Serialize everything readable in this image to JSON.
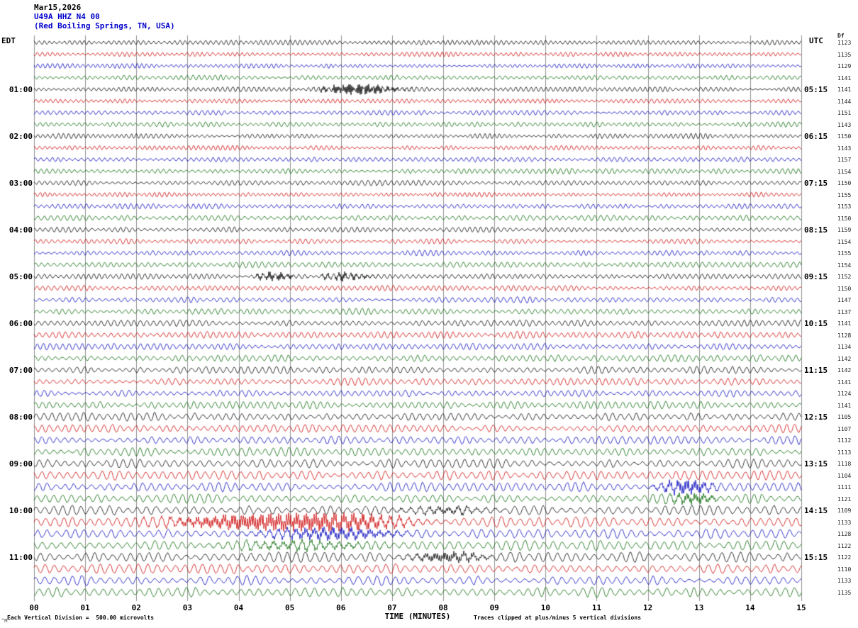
{
  "header": {
    "date": "Mar15,2026",
    "station": "U49A HHZ N4 00",
    "location": "(Red Boiling Springs, TN, USA)"
  },
  "footer": {
    "scale_note": "Each Vertical Division =  500.00 microvolts",
    "clip_note": "Traces clipped at plus/minus 5 vertical divisions",
    "corner_mark": "^M"
  },
  "colors": {
    "black": "#000000",
    "red": "#cc0000",
    "blue": "#0000bb",
    "green": "#006600",
    "grid": "#909090"
  },
  "chart_data": {
    "type": "line",
    "subtype": "helicorder-seismogram",
    "title": "U49A HHZ N4 00 (Red Boiling Springs, TN, USA) Mar15,2026",
    "left_timezone": "EDT",
    "right_timezone": "UTC",
    "right_col_header": "Df",
    "xlabel": "TIME (MINUTES)",
    "x_range": [
      0,
      15
    ],
    "minutes_per_row": 15,
    "x_ticks": [
      "00",
      "01",
      "02",
      "03",
      "04",
      "05",
      "06",
      "07",
      "08",
      "09",
      "10",
      "11",
      "12",
      "13",
      "14",
      "15"
    ],
    "rows": [
      {
        "color": "black",
        "left": null,
        "right": null,
        "value": "1123",
        "amp": 2.3,
        "wl": 7,
        "seed": 101
      },
      {
        "color": "red",
        "left": null,
        "right": null,
        "value": "1135",
        "amp": 2.0,
        "wl": 7,
        "seed": 114
      },
      {
        "color": "blue",
        "left": null,
        "right": null,
        "value": "1129",
        "amp": 2.1,
        "wl": 7,
        "seed": 127
      },
      {
        "color": "green",
        "left": null,
        "right": null,
        "value": "1141",
        "amp": 2.2,
        "wl": 8,
        "seed": 140
      },
      {
        "color": "black",
        "left": "01:00",
        "right": "05:15",
        "value": "1141",
        "amp": 2.0,
        "wl": 7,
        "seed": 153,
        "events": [
          {
            "m": 6.15,
            "a": 6,
            "w": 0.35
          },
          {
            "m": 6.8,
            "a": 2.5,
            "w": 0.5
          }
        ]
      },
      {
        "color": "red",
        "left": null,
        "right": null,
        "value": "1144",
        "amp": 2.0,
        "wl": 7,
        "seed": 166
      },
      {
        "color": "blue",
        "left": null,
        "right": null,
        "value": "1151",
        "amp": 2.1,
        "wl": 8,
        "seed": 179
      },
      {
        "color": "green",
        "left": null,
        "right": null,
        "value": "1143",
        "amp": 2.2,
        "wl": 8,
        "seed": 192
      },
      {
        "color": "black",
        "left": "02:00",
        "right": "06:15",
        "value": "1150",
        "amp": 2.2,
        "wl": 7,
        "seed": 205
      },
      {
        "color": "red",
        "left": null,
        "right": null,
        "value": "1143",
        "amp": 2.1,
        "wl": 7,
        "seed": 218
      },
      {
        "color": "blue",
        "left": null,
        "right": null,
        "value": "1157",
        "amp": 2.2,
        "wl": 8,
        "seed": 231
      },
      {
        "color": "green",
        "left": null,
        "right": null,
        "value": "1154",
        "amp": 2.3,
        "wl": 8,
        "seed": 244
      },
      {
        "color": "black",
        "left": "03:00",
        "right": "07:15",
        "value": "1150",
        "amp": 2.2,
        "wl": 8,
        "seed": 257
      },
      {
        "color": "red",
        "left": null,
        "right": null,
        "value": "1155",
        "amp": 2.1,
        "wl": 7,
        "seed": 270
      },
      {
        "color": "blue",
        "left": null,
        "right": null,
        "value": "1153",
        "amp": 2.3,
        "wl": 8,
        "seed": 283
      },
      {
        "color": "green",
        "left": null,
        "right": null,
        "value": "1150",
        "amp": 2.4,
        "wl": 9,
        "seed": 296
      },
      {
        "color": "black",
        "left": "04:00",
        "right": "08:15",
        "value": "1159",
        "amp": 2.3,
        "wl": 8,
        "seed": 309
      },
      {
        "color": "red",
        "left": null,
        "right": null,
        "value": "1154",
        "amp": 2.2,
        "wl": 8,
        "seed": 322
      },
      {
        "color": "blue",
        "left": null,
        "right": null,
        "value": "1155",
        "amp": 2.3,
        "wl": 8,
        "seed": 335
      },
      {
        "color": "green",
        "left": null,
        "right": null,
        "value": "1154",
        "amp": 2.4,
        "wl": 9,
        "seed": 348
      },
      {
        "color": "black",
        "left": "05:00",
        "right": "09:15",
        "value": "1152",
        "amp": 2.3,
        "wl": 8,
        "seed": 361,
        "events": [
          {
            "m": 4.7,
            "a": 4.5,
            "w": 0.25
          },
          {
            "m": 6.05,
            "a": 4,
            "w": 0.35
          }
        ]
      },
      {
        "color": "red",
        "left": null,
        "right": null,
        "value": "1150",
        "amp": 2.3,
        "wl": 8,
        "seed": 374
      },
      {
        "color": "blue",
        "left": null,
        "right": null,
        "value": "1147",
        "amp": 2.4,
        "wl": 9,
        "seed": 387
      },
      {
        "color": "green",
        "left": null,
        "right": null,
        "value": "1137",
        "amp": 2.5,
        "wl": 9,
        "seed": 400
      },
      {
        "color": "black",
        "left": "06:00",
        "right": "10:15",
        "value": "1141",
        "amp": 2.8,
        "wl": 9,
        "seed": 413
      },
      {
        "color": "red",
        "left": null,
        "right": null,
        "value": "1128",
        "amp": 3.0,
        "wl": 9,
        "seed": 426
      },
      {
        "color": "blue",
        "left": null,
        "right": null,
        "value": "1134",
        "amp": 2.9,
        "wl": 9,
        "seed": 439
      },
      {
        "color": "green",
        "left": null,
        "right": null,
        "value": "1142",
        "amp": 3.0,
        "wl": 10,
        "seed": 452
      },
      {
        "color": "black",
        "left": "07:00",
        "right": "11:15",
        "value": "1142",
        "amp": 3.2,
        "wl": 10,
        "seed": 465
      },
      {
        "color": "red",
        "left": null,
        "right": null,
        "value": "1141",
        "amp": 3.1,
        "wl": 10,
        "seed": 478
      },
      {
        "color": "blue",
        "left": null,
        "right": null,
        "value": "1124",
        "amp": 3.0,
        "wl": 10,
        "seed": 491
      },
      {
        "color": "green",
        "left": null,
        "right": null,
        "value": "1141",
        "amp": 3.2,
        "wl": 10,
        "seed": 504
      },
      {
        "color": "black",
        "left": "08:00",
        "right": "12:15",
        "value": "1105",
        "amp": 3.6,
        "wl": 11,
        "seed": 517
      },
      {
        "color": "red",
        "left": null,
        "right": null,
        "value": "1107",
        "amp": 3.5,
        "wl": 11,
        "seed": 530
      },
      {
        "color": "blue",
        "left": null,
        "right": null,
        "value": "1112",
        "amp": 3.6,
        "wl": 11,
        "seed": 543
      },
      {
        "color": "green",
        "left": null,
        "right": null,
        "value": "1113",
        "amp": 3.7,
        "wl": 11,
        "seed": 556
      },
      {
        "color": "black",
        "left": "09:00",
        "right": "13:15",
        "value": "1118",
        "amp": 3.9,
        "wl": 12,
        "seed": 569
      },
      {
        "color": "red",
        "left": null,
        "right": null,
        "value": "1104",
        "amp": 4.0,
        "wl": 12,
        "seed": 582
      },
      {
        "color": "blue",
        "left": null,
        "right": null,
        "value": "1111",
        "amp": 4.0,
        "wl": 12,
        "seed": 595,
        "events": [
          {
            "m": 12.75,
            "a": 7,
            "w": 0.35
          }
        ]
      },
      {
        "color": "green",
        "left": null,
        "right": null,
        "value": "1121",
        "amp": 4.1,
        "wl": 12,
        "seed": 608,
        "events": [
          {
            "m": 12.9,
            "a": 5,
            "w": 0.3
          }
        ]
      },
      {
        "color": "black",
        "left": "10:00",
        "right": "14:15",
        "value": "1109",
        "amp": 4.3,
        "wl": 13,
        "seed": 621,
        "events": [
          {
            "m": 8.0,
            "a": 3,
            "w": 0.6
          }
        ]
      },
      {
        "color": "red",
        "left": null,
        "right": null,
        "value": "1133",
        "amp": 4.4,
        "wl": 13,
        "seed": 634,
        "events": [
          {
            "m": 4.6,
            "a": 9,
            "w": 1.2
          },
          {
            "m": 6.3,
            "a": 4,
            "w": 0.8
          }
        ]
      },
      {
        "color": "blue",
        "left": null,
        "right": null,
        "value": "1128",
        "amp": 4.3,
        "wl": 13,
        "seed": 647,
        "events": [
          {
            "m": 5.8,
            "a": 5,
            "w": 0.9
          }
        ]
      },
      {
        "color": "green",
        "left": null,
        "right": null,
        "value": "1122",
        "amp": 4.4,
        "wl": 13,
        "seed": 660,
        "events": [
          {
            "m": 5.2,
            "a": 3,
            "w": 1.0
          }
        ]
      },
      {
        "color": "black",
        "left": "11:00",
        "right": "15:15",
        "value": "1122",
        "amp": 4.2,
        "wl": 13,
        "seed": 673,
        "events": [
          {
            "m": 8.1,
            "a": 5,
            "w": 0.5
          }
        ]
      },
      {
        "color": "red",
        "left": null,
        "right": null,
        "value": "1110",
        "amp": 4.1,
        "wl": 13,
        "seed": 686
      },
      {
        "color": "blue",
        "left": null,
        "right": null,
        "value": "1133",
        "amp": 4.2,
        "wl": 13,
        "seed": 699
      },
      {
        "color": "green",
        "left": null,
        "right": null,
        "value": "1135",
        "amp": 4.3,
        "wl": 13,
        "seed": 712
      }
    ]
  }
}
